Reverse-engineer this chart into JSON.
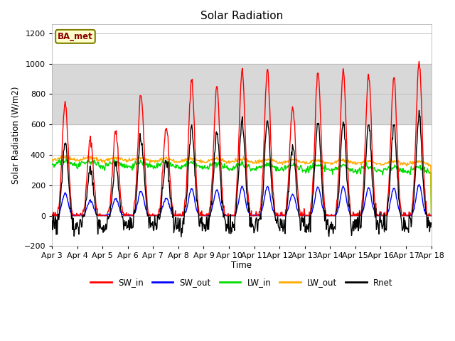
{
  "title": "Solar Radiation",
  "ylabel": "Solar Radiation (W/m2)",
  "xlabel": "Time",
  "xlim": [
    0,
    15
  ],
  "ylim": [
    -200,
    1260
  ],
  "yticks": [
    -200,
    0,
    200,
    400,
    600,
    800,
    1000,
    1200
  ],
  "xtick_labels": [
    "Apr 3",
    "Apr 4",
    "Apr 5",
    "Apr 6",
    "Apr 7",
    "Apr 8",
    "Apr 9",
    "Apr 10",
    "Apr 11",
    "Apr 12",
    "Apr 13",
    "Apr 14",
    "Apr 15",
    "Apr 16",
    "Apr 17",
    "Apr 18"
  ],
  "xtick_positions": [
    0,
    1,
    2,
    3,
    4,
    5,
    6,
    7,
    8,
    9,
    10,
    11,
    12,
    13,
    14,
    15
  ],
  "colors": {
    "SW_in": "#ff0000",
    "SW_out": "#0000ff",
    "LW_in": "#00dd00",
    "LW_out": "#ffaa00",
    "Rnet": "#000000"
  },
  "legend_label": "BA_met",
  "axes_bg": "#ffffff",
  "shaded_band_color": "#d8d8d8",
  "shaded_band_ymin": 600,
  "shaded_band_ymax": 1000,
  "grid_color": "#cccccc"
}
